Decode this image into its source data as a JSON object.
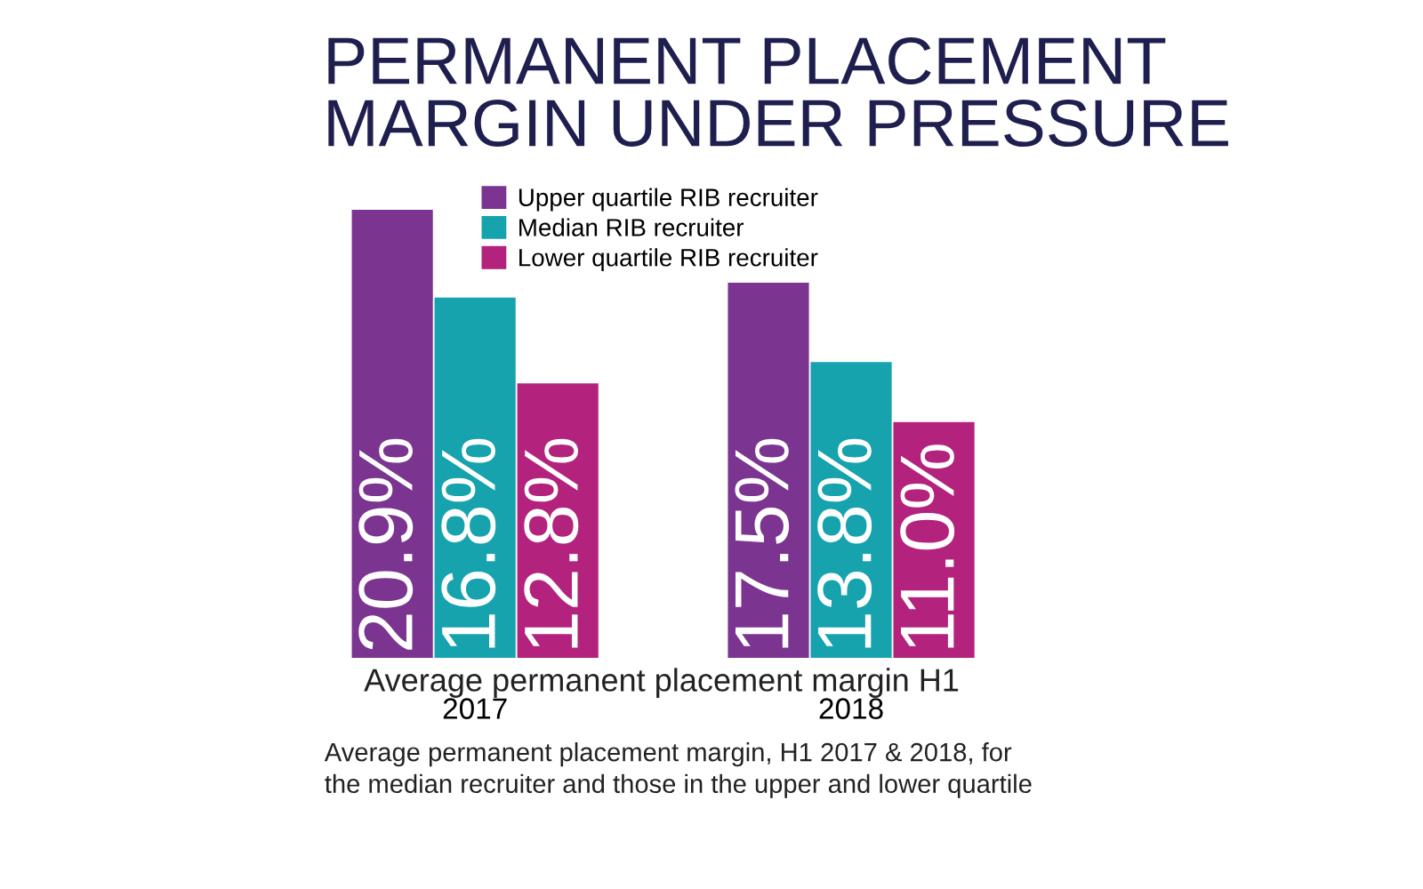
{
  "chart_data": {
    "type": "bar",
    "title": "PERMANENT PLACEMENT\nMARGIN UNDER PRESSURE",
    "xlabel": "Average permanent placement margin H1",
    "categories": [
      "2017",
      "2018"
    ],
    "series": [
      {
        "name": "Upper quartile RIB recruiter",
        "color": "#7b3590",
        "values": [
          20.9,
          17.5
        ],
        "value_labels": [
          "20.9%",
          "17.5%"
        ]
      },
      {
        "name": "Median RIB recruiter",
        "color": "#16a3ad",
        "values": [
          16.8,
          13.8
        ],
        "value_labels": [
          "16.8%",
          "13.8%"
        ]
      },
      {
        "name": "Lower quartile RIB recruiter",
        "color": "#b3237e",
        "values": [
          12.8,
          11.0
        ],
        "value_labels": [
          "12.8%",
          "11.0%"
        ]
      }
    ],
    "annotations": [
      "Average permanent placement margin, H1 2017 & 2018, for\nthe median recruiter and those in the upper and lower quartile"
    ],
    "legend": "top",
    "grid": false,
    "tick_labels": "x"
  }
}
